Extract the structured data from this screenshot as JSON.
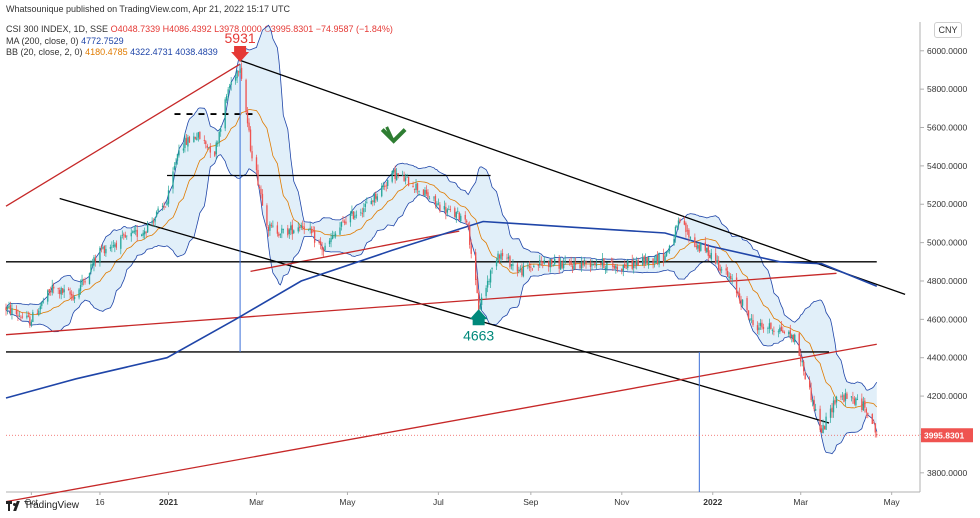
{
  "header": {
    "published": "Whatsounique published on TradingView.com, Apr 21, 2022 15:17 UTC",
    "symbol_line": {
      "label": "CSI 300 INDEX, 1D, SSE",
      "ohlc_text": "O4048.7339 H4086.4392 L3978.0000 C3995.8301",
      "change": "−74.9587 (−1.84%)"
    },
    "ma_line": {
      "label": "MA (200, close, 0)",
      "value": "4772.7529"
    },
    "bb_line": {
      "label": "BB (20, close, 2, 0)",
      "basis": "4180.4785",
      "upper": "4322.4731",
      "lower": "4038.4839"
    }
  },
  "currency_button": "CNY",
  "footer_logo": "TradingView",
  "colors": {
    "up": "#26a69a",
    "down": "#ef5350",
    "ma": "#1f45a8",
    "bb_basis": "#e07b00",
    "bb_band": "#1f45a8",
    "bb_fill": "#bcdcf2",
    "trend_black": "#000000",
    "trend_red": "#c62828",
    "marker_red": "#e53935",
    "marker_green": "#2e7d32",
    "marker_teal": "#00897b"
  },
  "chart_data": {
    "type": "candlestick",
    "x_range": [
      "2020-09-14",
      "2022-05-20"
    ],
    "ylim": [
      3700,
      6150
    ],
    "x_ticks": [
      {
        "label": "Oct",
        "date": "2020-10-01"
      },
      {
        "label": "16",
        "date": "2020-11-16"
      },
      {
        "label": "2021",
        "date": "2021-01-01"
      },
      {
        "label": "Mar",
        "date": "2021-03-01"
      },
      {
        "label": "May",
        "date": "2021-05-01"
      },
      {
        "label": "Jul",
        "date": "2021-07-01"
      },
      {
        "label": "Sep",
        "date": "2021-09-01"
      },
      {
        "label": "Nov",
        "date": "2021-11-01"
      },
      {
        "label": "2022",
        "date": "2022-01-01"
      },
      {
        "label": "Mar",
        "date": "2022-03-01"
      },
      {
        "label": "May",
        "date": "2022-05-01"
      }
    ],
    "y_ticks": [
      {
        "label": "3800.0000",
        "value": 3800
      },
      {
        "label": "4000.0000",
        "value": 4000
      },
      {
        "label": "4200.0000",
        "value": 4200
      },
      {
        "label": "4400.0000",
        "value": 4400
      },
      {
        "label": "4600.0000",
        "value": 4600
      },
      {
        "label": "4800.0000",
        "value": 4800
      },
      {
        "label": "5000.0000",
        "value": 5000
      },
      {
        "label": "5200.0000",
        "value": 5200
      },
      {
        "label": "5400.0000",
        "value": 5400
      },
      {
        "label": "5600.0000",
        "value": 5600
      },
      {
        "label": "5800.0000",
        "value": 5800
      },
      {
        "label": "6000.0000",
        "value": 6000
      }
    ],
    "last_price": {
      "label": "3995.8301",
      "value": 3995.8301
    },
    "price_path": [
      [
        "2020-09-14",
        4660
      ],
      [
        "2020-09-30",
        4590
      ],
      [
        "2020-10-15",
        4760
      ],
      [
        "2020-10-30",
        4720
      ],
      [
        "2020-11-16",
        4960
      ],
      [
        "2020-11-30",
        5010
      ],
      [
        "2020-12-15",
        5060
      ],
      [
        "2020-12-31",
        5210
      ],
      [
        "2021-01-08",
        5500
      ],
      [
        "2021-01-20",
        5560
      ],
      [
        "2021-02-01",
        5470
      ],
      [
        "2021-02-10",
        5800
      ],
      [
        "2021-02-18",
        5931
      ],
      [
        "2021-02-25",
        5500
      ],
      [
        "2021-03-09",
        5080
      ],
      [
        "2021-03-20",
        5050
      ],
      [
        "2021-04-01",
        5100
      ],
      [
        "2021-04-15",
        4960
      ],
      [
        "2021-04-30",
        5120
      ],
      [
        "2021-05-15",
        5200
      ],
      [
        "2021-06-01",
        5360
      ],
      [
        "2021-06-15",
        5300
      ],
      [
        "2021-06-30",
        5200
      ],
      [
        "2021-07-10",
        5150
      ],
      [
        "2021-07-20",
        5130
      ],
      [
        "2021-07-28",
        4663
      ],
      [
        "2021-08-10",
        4950
      ],
      [
        "2021-08-25",
        4850
      ],
      [
        "2021-09-10",
        4900
      ],
      [
        "2021-09-25",
        4880
      ],
      [
        "2021-10-15",
        4900
      ],
      [
        "2021-10-30",
        4870
      ],
      [
        "2021-11-15",
        4900
      ],
      [
        "2021-11-30",
        4930
      ],
      [
        "2021-12-10",
        5110
      ],
      [
        "2021-12-20",
        4990
      ],
      [
        "2021-12-31",
        4940
      ],
      [
        "2022-01-15",
        4780
      ],
      [
        "2022-01-28",
        4570
      ],
      [
        "2022-02-15",
        4550
      ],
      [
        "2022-02-25",
        4500
      ],
      [
        "2022-03-08",
        4200
      ],
      [
        "2022-03-15",
        4010
      ],
      [
        "2022-03-25",
        4200
      ],
      [
        "2022-04-06",
        4180
      ],
      [
        "2022-04-15",
        4130
      ],
      [
        "2022-04-21",
        3996
      ]
    ],
    "ma200": [
      [
        "2020-09-14",
        4190
      ],
      [
        "2020-10-31",
        4290
      ],
      [
        "2020-12-31",
        4400
      ],
      [
        "2021-02-15",
        4600
      ],
      [
        "2021-03-31",
        4800
      ],
      [
        "2021-05-31",
        4960
      ],
      [
        "2021-07-31",
        5110
      ],
      [
        "2021-09-30",
        5080
      ],
      [
        "2021-11-30",
        5050
      ],
      [
        "2021-12-31",
        4980
      ],
      [
        "2022-02-15",
        4900
      ],
      [
        "2022-03-15",
        4890
      ],
      [
        "2022-04-21",
        4772.7529
      ]
    ],
    "annotations": [
      {
        "label": "5931",
        "date": "2021-02-18",
        "value": 5931,
        "marker": "down-arrow"
      },
      {
        "label": "4663",
        "date": "2021-07-28",
        "value": 4663,
        "marker": "up-arrow"
      },
      {
        "label": "",
        "date": "2021-06-01",
        "value": 5530,
        "marker": "down-arrow"
      }
    ],
    "trend_lines": [
      {
        "color": "black",
        "from": [
          "2021-02-18",
          5950
        ],
        "to": [
          "2022-05-10",
          4730
        ]
      },
      {
        "color": "black",
        "from": [
          "2020-10-20",
          5230
        ],
        "to": [
          "2022-03-20",
          4060
        ]
      },
      {
        "color": "red",
        "from": [
          "2020-09-14",
          5190
        ],
        "to": [
          "2021-02-18",
          5931
        ]
      },
      {
        "color": "red",
        "from": [
          "2021-02-25",
          4850
        ],
        "to": [
          "2021-07-15",
          5060
        ]
      },
      {
        "color": "red",
        "from": [
          "2020-09-14",
          4520
        ],
        "to": [
          "2022-03-25",
          4840
        ]
      },
      {
        "color": "red",
        "from": [
          "2020-09-14",
          3650
        ],
        "to": [
          "2022-04-21",
          4470
        ]
      }
    ],
    "horizontal_lines": [
      {
        "color": "black",
        "value": 5350,
        "from": "2020-12-31",
        "to": "2021-08-05"
      },
      {
        "color": "black",
        "value": 5670,
        "from": "2021-01-05",
        "to": "2021-03-01",
        "dashed": true
      },
      {
        "color": "black",
        "value": 4900,
        "from": "2020-09-14",
        "to": "2022-04-21"
      },
      {
        "color": "black",
        "value": 4430,
        "from": "2020-09-14",
        "to": "2022-03-20"
      }
    ],
    "vertical_lines": [
      {
        "date": "2021-02-18",
        "from": 5931,
        "to": 4430
      },
      {
        "date": "2021-12-23",
        "from": 4430,
        "to": 3700
      }
    ]
  }
}
